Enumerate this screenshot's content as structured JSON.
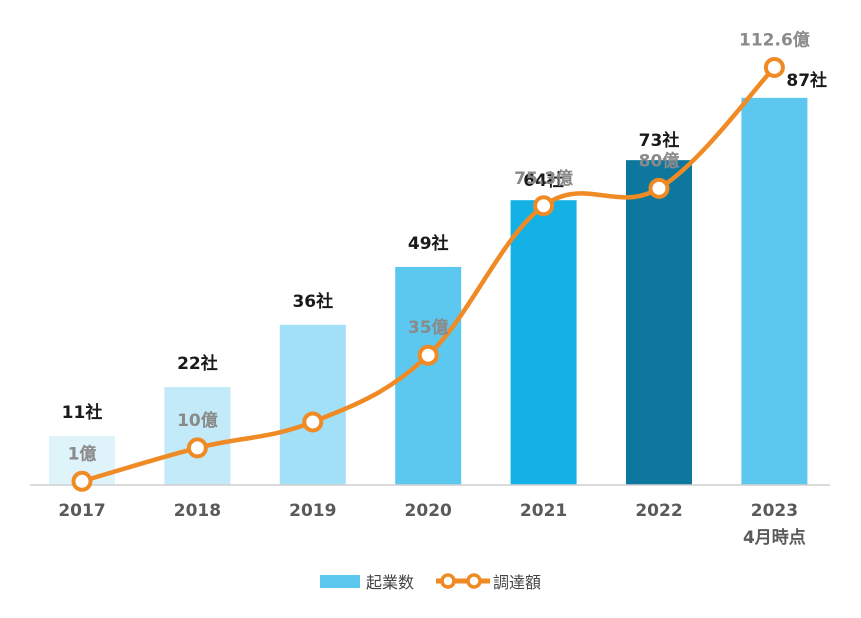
{
  "chart_data": {
    "type": "bar+line",
    "categories": [
      "2017",
      "2018",
      "2019",
      "2020",
      "2021",
      "2022",
      "2023"
    ],
    "category_sublabels": [
      "",
      "",
      "",
      "",
      "",
      "",
      "4月時点"
    ],
    "bar_series": {
      "name": "起業数",
      "values": [
        11,
        22,
        36,
        49,
        64,
        73,
        87
      ],
      "labels": [
        "11社",
        "22社",
        "36社",
        "49社",
        "64社",
        "73社",
        "87社"
      ],
      "colors": [
        "#dff3fb",
        "#c3eaf9",
        "#a1e0f7",
        "#5cc8ef",
        "#14b1e7",
        "#0d779e",
        "#5cc8ef"
      ]
    },
    "line_series": {
      "name": "調達額",
      "values": [
        1,
        10,
        17,
        35,
        75.3,
        80,
        112.6
      ],
      "labels": [
        "1億",
        "10億",
        "",
        "35億",
        "75.3億",
        "80億",
        "112.6億"
      ],
      "color": "#f08a24"
    },
    "bar_ylim": [
      0,
      100
    ],
    "line_ylim": [
      0,
      120
    ],
    "legend_position": "bottom-center",
    "legend_swatch_color": "#5cc8ef"
  }
}
